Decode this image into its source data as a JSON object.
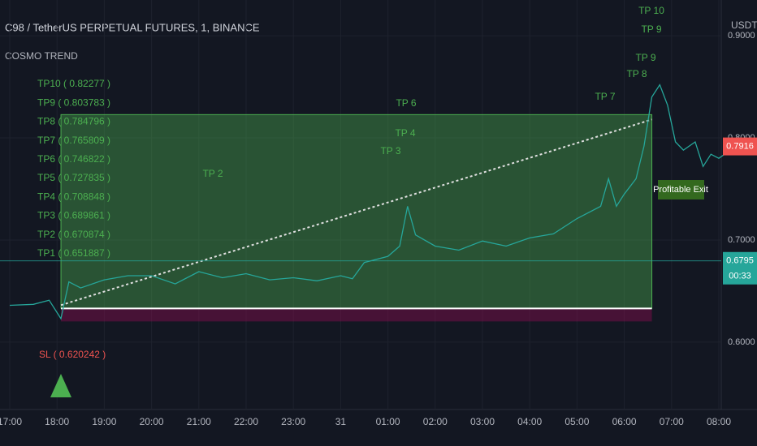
{
  "chart_data": {
    "type": "line",
    "title": "C98 / TetherUS PERPETUAL FUTURES, 1, BINANCE",
    "subtitle": "COSMO TREND",
    "y_axis_label": "USDT",
    "series": [
      {
        "name": "C98",
        "color": "#26a69a",
        "x": [
          "17:00",
          "17:30",
          "17:50",
          "18:05",
          "18:15",
          "18:30",
          "19:00",
          "19:30",
          "20:00",
          "20:30",
          "21:00",
          "21:30",
          "22:00",
          "22:30",
          "23:00",
          "23:30",
          "00:00",
          "00:15",
          "00:30",
          "01:00",
          "01:15",
          "01:25",
          "01:35",
          "02:00",
          "02:30",
          "03:00",
          "03:30",
          "04:00",
          "04:30",
          "05:00",
          "05:30",
          "05:40",
          "05:50",
          "06:00",
          "06:15",
          "06:25",
          "06:35",
          "06:45",
          "06:55",
          "07:05",
          "07:15",
          "07:30",
          "07:40",
          "07:50",
          "08:00",
          "08:15"
        ],
        "values": [
          0.636,
          0.637,
          0.641,
          0.623,
          0.659,
          0.653,
          0.661,
          0.665,
          0.665,
          0.657,
          0.669,
          0.663,
          0.667,
          0.661,
          0.663,
          0.66,
          0.665,
          0.662,
          0.678,
          0.684,
          0.694,
          0.733,
          0.705,
          0.694,
          0.69,
          0.699,
          0.694,
          0.702,
          0.706,
          0.721,
          0.733,
          0.76,
          0.733,
          0.745,
          0.76,
          0.792,
          0.84,
          0.852,
          0.832,
          0.796,
          0.788,
          0.796,
          0.772,
          0.784,
          0.78,
          0.788
        ]
      }
    ],
    "ylim": [
      0.534,
      0.935
    ],
    "yticks": [
      {
        "value": 0.6,
        "label": "0.6000"
      },
      {
        "value": 0.7,
        "label": "0.7000"
      },
      {
        "value": 0.8,
        "label": "0.8000"
      },
      {
        "value": 0.9,
        "label": "0.9000"
      }
    ],
    "xticks": [
      "17:00",
      "18:00",
      "19:00",
      "20:00",
      "21:00",
      "22:00",
      "23:00",
      {
        "value": "00:00",
        "label": "31"
      },
      "01:00",
      "02:00",
      "03:00",
      "04:00",
      "05:00",
      "06:00",
      "07:00",
      "08:00"
    ],
    "grid": true,
    "position": {
      "entry": 0.633,
      "target": 0.82277,
      "stop": 0.620242,
      "start": "18:05",
      "end": "06:35"
    },
    "tp_list": [
      "TP10 ( 0.82277 )",
      "TP9 ( 0.803783 )",
      "TP8 ( 0.784796 )",
      "TP7 ( 0.765809 )",
      "TP6 ( 0.746822 )",
      "TP5 ( 0.727835 )",
      "TP4 ( 0.708848 )",
      "TP3 ( 0.689861 )",
      "TP2 ( 0.670874 )",
      "TP1 ( 0.651887 )"
    ],
    "sl_label": "SL ( 0.620242 )",
    "tp_hits": [
      "TP 2",
      "TP 3",
      "TP 4",
      "TP 6",
      "TP 7",
      "TP 8",
      "TP 9",
      "TP 10",
      "TP 9"
    ],
    "exit_label": "Profitable Exit",
    "price_markers": [
      {
        "value": 0.7916,
        "color": "#ef5350"
      },
      {
        "value": 0.6795,
        "color": "#26a69a",
        "countdown": "00:33"
      }
    ]
  }
}
